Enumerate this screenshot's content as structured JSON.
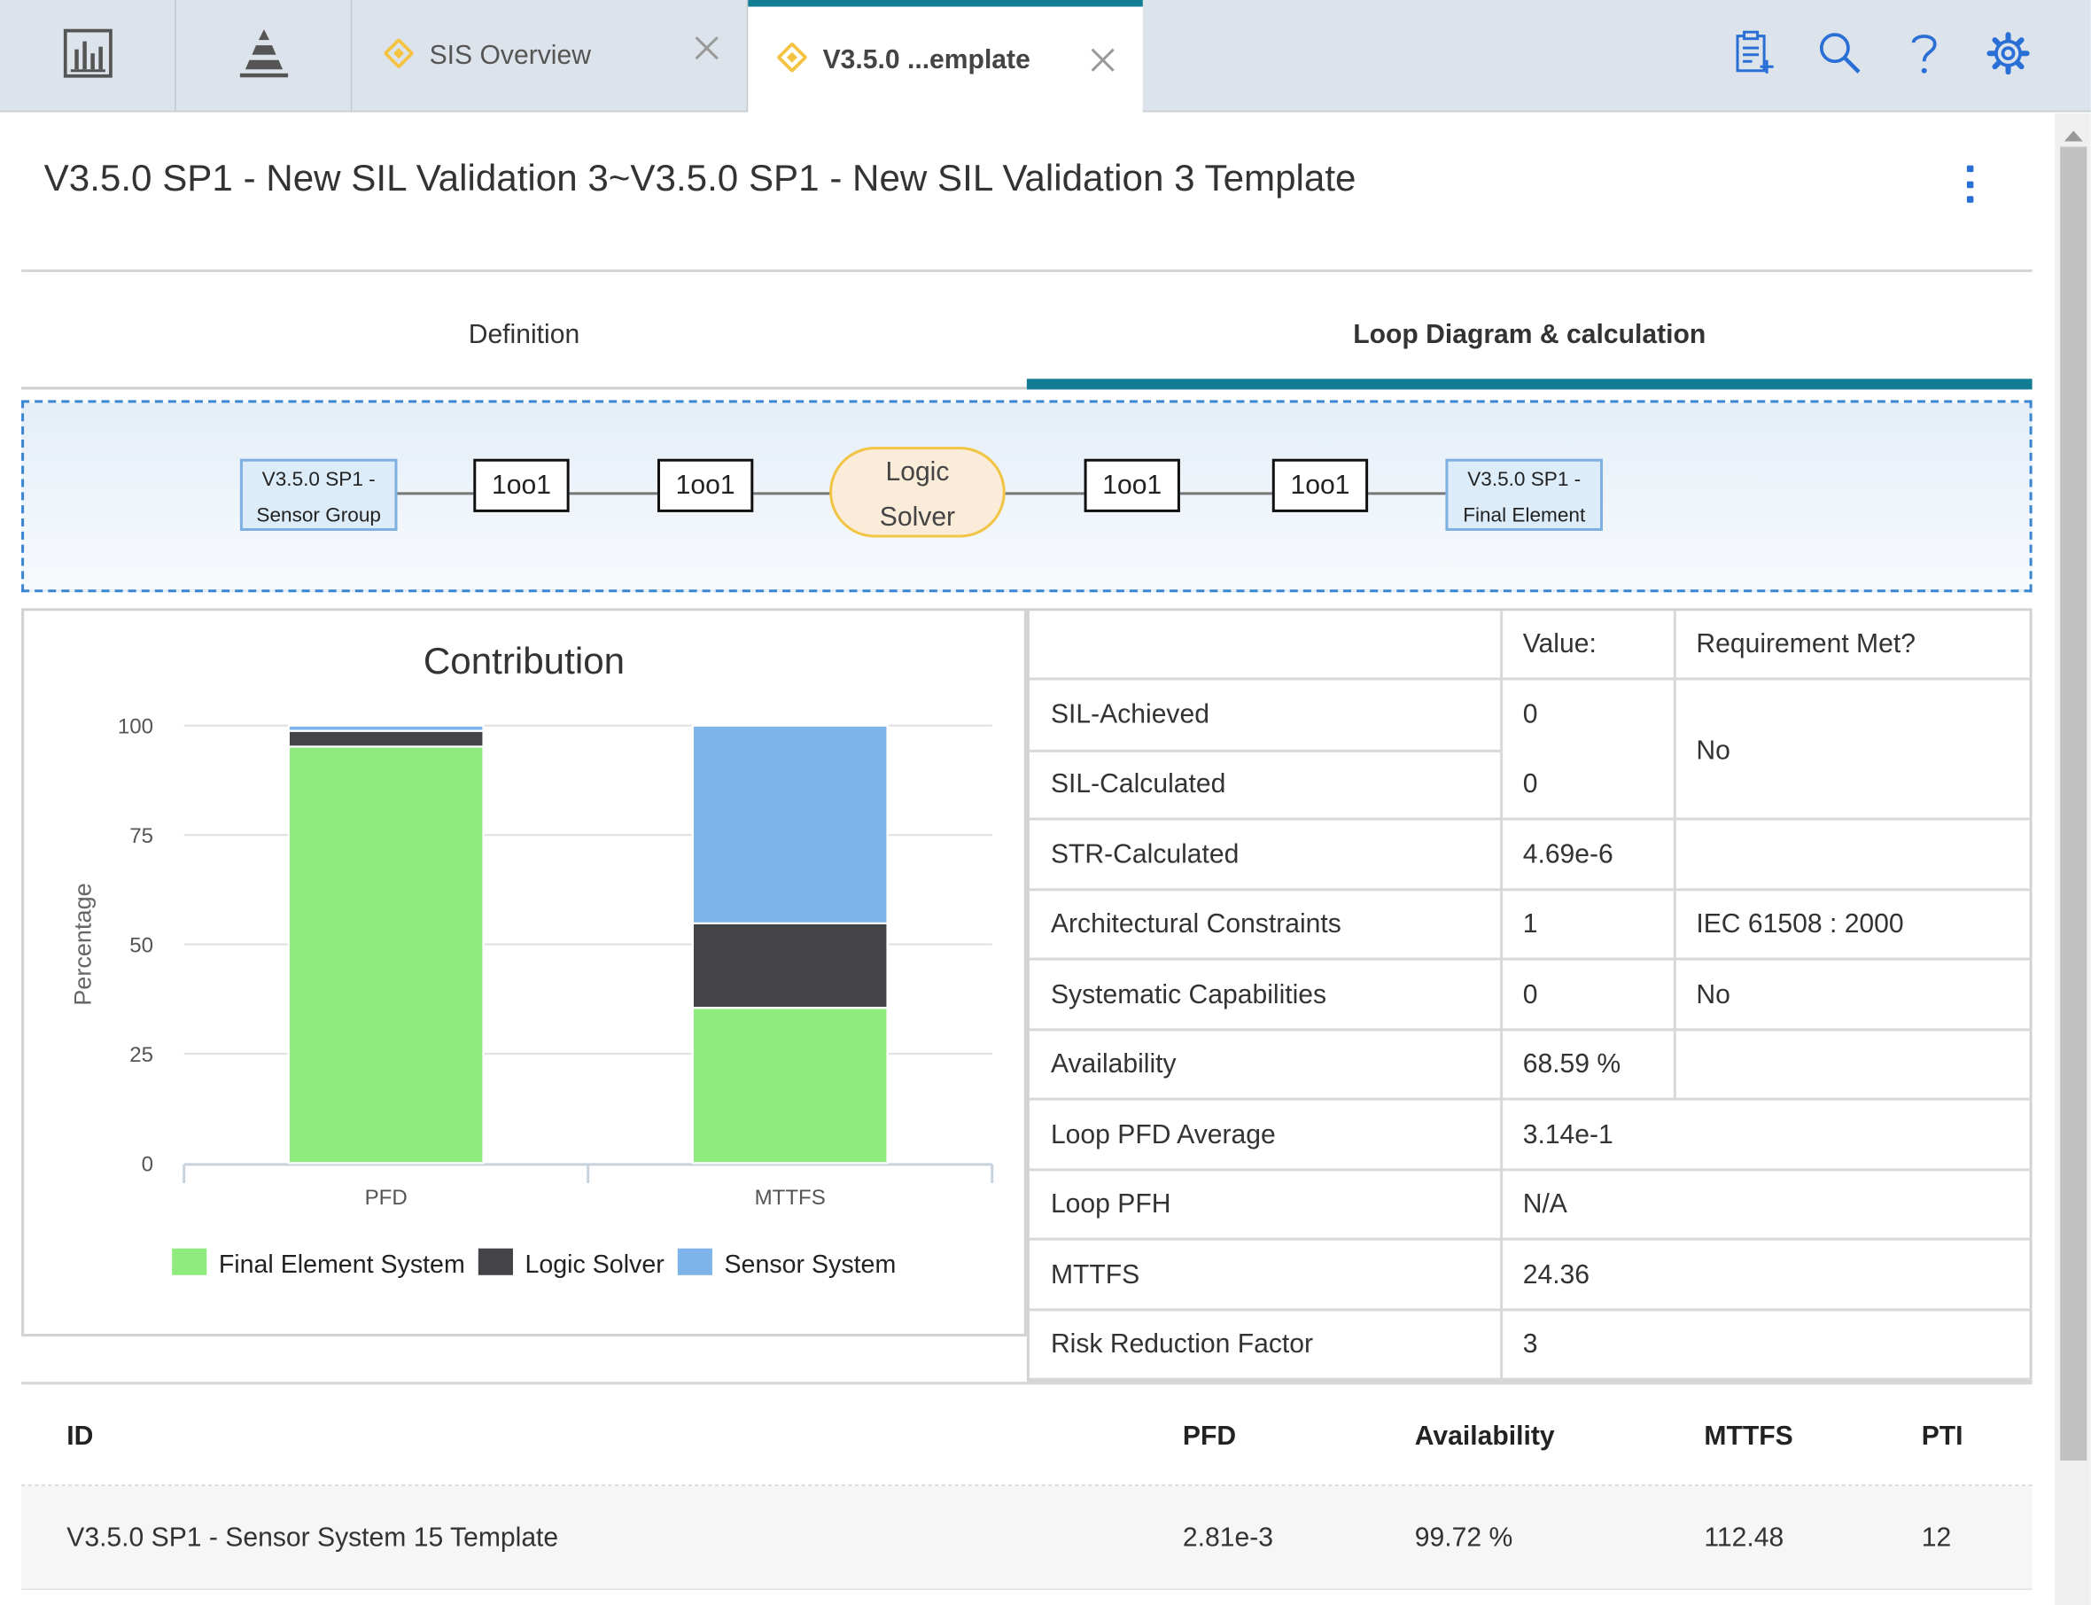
{
  "tabs": {
    "inactive": {
      "label": "SIS Overview"
    },
    "active": {
      "label": "V3.5.0 ...emplate"
    }
  },
  "page": {
    "title": "V3.5.0 SP1 - New SIL Validation 3~V3.5.0 SP1 - New SIL Validation 3 Template"
  },
  "section_tabs": {
    "definition": "Definition",
    "loop": "Loop Diagram & calculation"
  },
  "loop_diagram": {
    "sensor_line1": "V3.5.0 SP1 -",
    "sensor_line2": "Sensor Group",
    "voting": [
      "1oo1",
      "1oo1",
      "1oo1",
      "1oo1"
    ],
    "logic_line1": "Logic",
    "logic_line2": "Solver",
    "final_line1": "V3.5.0 SP1 -",
    "final_line2": "Final Element"
  },
  "chart_data": {
    "type": "bar",
    "stacked": true,
    "title": "Contribution",
    "ylabel": "Percentage",
    "xlabel": "",
    "ylim": [
      0,
      100
    ],
    "yticks": [
      0,
      25,
      50,
      75,
      100
    ],
    "categories": [
      "PFD",
      "MTTFS"
    ],
    "series": [
      {
        "name": "Final Element System",
        "color": "#90eb7e",
        "values": [
          95.2,
          35.5
        ]
      },
      {
        "name": "Logic Solver",
        "color": "#434348",
        "values": [
          3.6,
          19.3
        ]
      },
      {
        "name": "Sensor System",
        "color": "#7eb4ea",
        "values": [
          1.2,
          45.2
        ]
      }
    ],
    "legend": "bottom",
    "grid": true
  },
  "metrics": {
    "header": {
      "value": "Value:",
      "requirement": "Requirement Met?"
    },
    "rows": [
      {
        "label": "SIL-Achieved",
        "value": "0",
        "req": ""
      },
      {
        "label": "SIL-Calculated",
        "value": "0",
        "req": ""
      },
      {
        "label": "STR-Calculated",
        "value": "4.69e-6",
        "req": ""
      },
      {
        "label": "Architectural Constraints",
        "value": "1",
        "req": "IEC 61508 : 2000"
      },
      {
        "label": "Systematic Capabilities",
        "value": "0",
        "req": "No"
      },
      {
        "label": "Availability",
        "value": "68.59 %",
        "req": ""
      },
      {
        "label": "Loop PFD Average",
        "value": "3.14e-1",
        "req": ""
      },
      {
        "label": "Loop PFH",
        "value": "N/A",
        "req": ""
      },
      {
        "label": "MTTFS",
        "value": "24.36",
        "req": ""
      },
      {
        "label": "Risk Reduction Factor",
        "value": "3",
        "req": ""
      }
    ],
    "sil_requirement": "No"
  },
  "subsystems": {
    "columns": {
      "id": "ID",
      "pfd": "PFD",
      "availability": "Availability",
      "mttfs": "MTTFS",
      "pti": "PTI"
    },
    "rows": [
      {
        "id": "V3.5.0 SP1 - Sensor System 15 Template",
        "pfd": "2.81e-3",
        "availability": "99.72 %",
        "mttfs": "112.48",
        "pti": "12"
      }
    ]
  },
  "icons": {
    "nav": [
      "dashboard-icon",
      "pyramid-icon"
    ],
    "tab_icon": "diamond-icon",
    "tools": [
      "clipboard-add-icon",
      "search-icon",
      "help-icon",
      "gear-icon"
    ],
    "accent": "#127c94",
    "icon_blue": "#2a6fd6",
    "diamond_color": "#f5c342"
  }
}
